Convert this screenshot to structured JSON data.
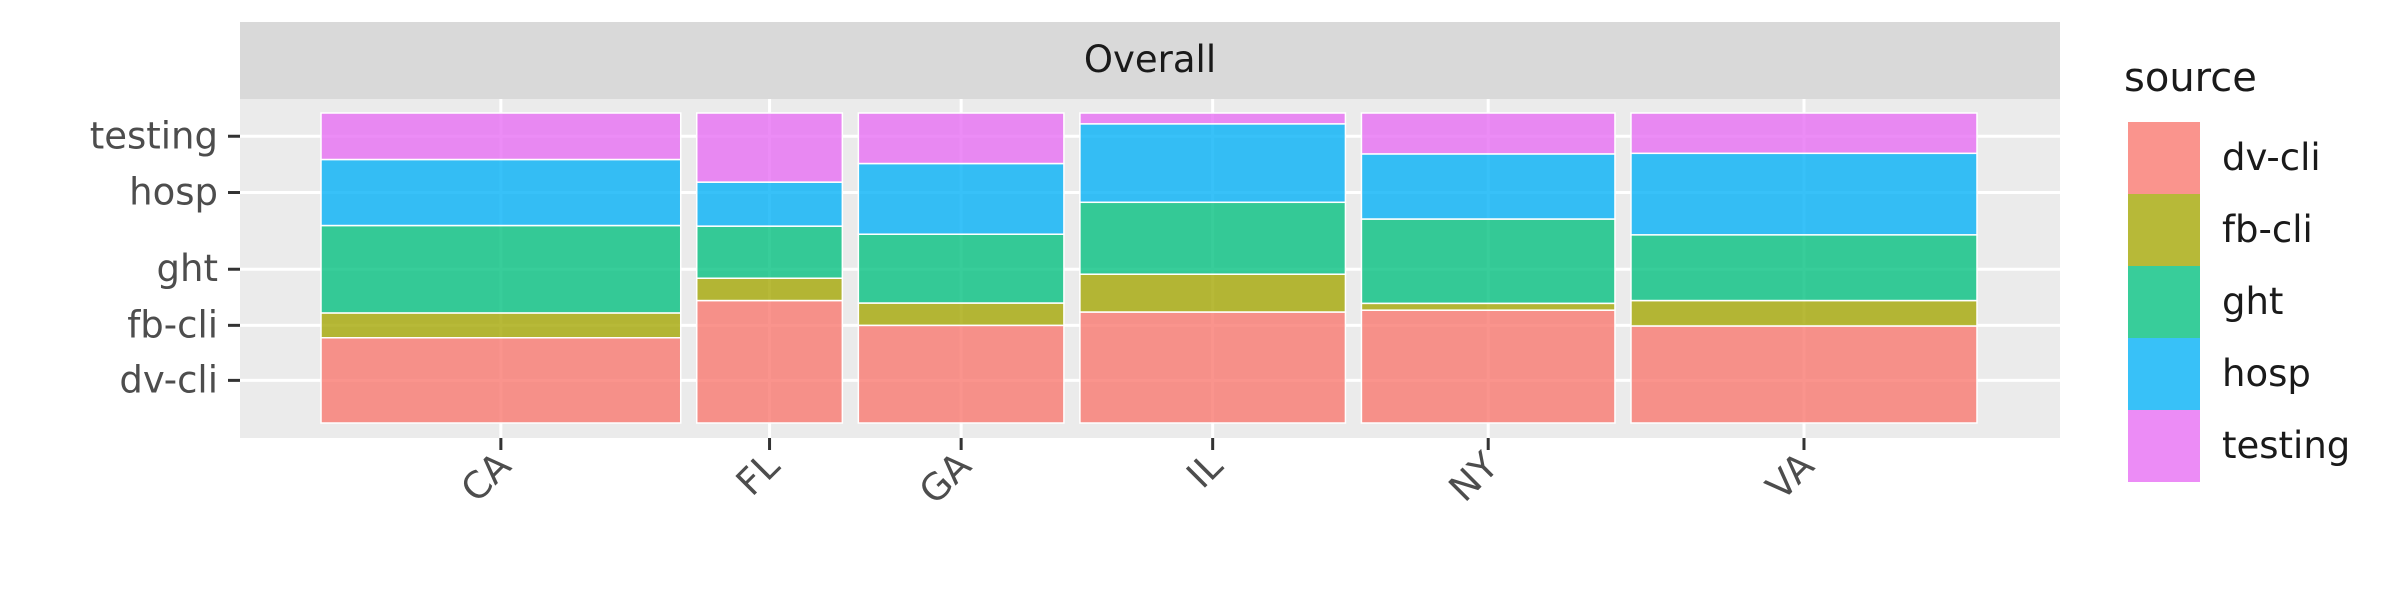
{
  "chart_data": {
    "type": "mosaic",
    "facet_label": "Overall",
    "xlabel": "",
    "ylabel": "",
    "categories": [
      "CA",
      "FL",
      "GA",
      "IL",
      "NY",
      "VA"
    ],
    "widths": [
      0.21,
      0.085,
      0.12,
      0.155,
      0.148,
      0.202
    ],
    "series": [
      {
        "name": "dv-cli",
        "values": [
          0.275,
          0.395,
          0.315,
          0.358,
          0.364,
          0.313
        ]
      },
      {
        "name": "fb-cli",
        "values": [
          0.08,
          0.072,
          0.072,
          0.122,
          0.022,
          0.082
        ]
      },
      {
        "name": "ght",
        "values": [
          0.282,
          0.168,
          0.222,
          0.232,
          0.272,
          0.212
        ]
      },
      {
        "name": "hosp",
        "values": [
          0.213,
          0.142,
          0.228,
          0.253,
          0.21,
          0.263
        ]
      },
      {
        "name": "testing",
        "values": [
          0.15,
          0.223,
          0.163,
          0.035,
          0.132,
          0.13
        ]
      }
    ],
    "y_tick_labels": [
      "dv-cli",
      "fb-cli",
      "ght",
      "hosp",
      "testing"
    ],
    "legend": {
      "title": "source",
      "entries": [
        "dv-cli",
        "fb-cli",
        "ght",
        "hosp",
        "testing"
      ],
      "position": "right"
    },
    "colors": {
      "dv-cli": "#F8766D",
      "fb-cli": "#A3A500",
      "ght": "#00BF7D",
      "hosp": "#00B0F6",
      "testing": "#E76BF3"
    },
    "grid": true,
    "panel_background": "#EBEBEB",
    "strip_background": "#D9D9D9"
  }
}
